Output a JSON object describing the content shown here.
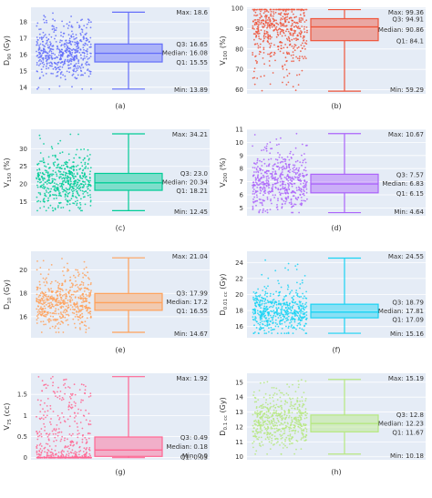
{
  "chart_data": [
    {
      "type": "box",
      "label": "(a)",
      "ylabel": "D",
      "ylabel_sub": "90",
      "ylabel_unit": "(Gy)",
      "color": "#636EFA",
      "ylim": [
        13.6,
        18.9
      ],
      "yticks": [
        14,
        15,
        16,
        17,
        18
      ],
      "stats": {
        "max": 18.6,
        "q3": 16.65,
        "median": 16.08,
        "q1": 15.55,
        "min": 13.89
      },
      "stat_text": {
        "max": "Max: 18.6",
        "q3": "Q3: 16.65",
        "median": "Median: 16.08",
        "q1": "Q1: 15.55",
        "min": "Min: 13.89"
      }
    },
    {
      "type": "box",
      "label": "(b)",
      "ylabel": "V",
      "ylabel_sub": "100",
      "ylabel_unit": "(%)",
      "color": "#EF553B",
      "ylim": [
        58,
        100.5
      ],
      "yticks": [
        60,
        70,
        80,
        90,
        100
      ],
      "stats": {
        "max": 99.36,
        "q3": 94.91,
        "median": 90.86,
        "q1": 84.1,
        "min": 59.29
      },
      "stat_text": {
        "max": "Max: 99.36",
        "q3": "Q3: 94.91",
        "median": "Median: 90.86",
        "q1": "Q1: 84.1",
        "min": "Min: 59.29"
      }
    },
    {
      "type": "box",
      "label": "(c)",
      "ylabel": "V",
      "ylabel_sub": "150",
      "ylabel_unit": "(%)",
      "color": "#00CC96",
      "ylim": [
        11,
        35.5
      ],
      "yticks": [
        15,
        20,
        25,
        30
      ],
      "stats": {
        "max": 34.21,
        "q3": 23.0,
        "median": 20.34,
        "q1": 18.21,
        "min": 12.45
      },
      "stat_text": {
        "max": "Max: 34.21",
        "q3": "Q3: 23.0",
        "median": "Median: 20.34",
        "q1": "Q1: 18.21",
        "min": "Min: 12.45"
      }
    },
    {
      "type": "box",
      "label": "(d)",
      "ylabel": "V",
      "ylabel_sub": "200",
      "ylabel_unit": "(%)",
      "color": "#AB63FA",
      "ylim": [
        4.4,
        11
      ],
      "yticks": [
        5,
        6,
        7,
        8,
        9,
        10,
        11
      ],
      "stats": {
        "max": 10.67,
        "q3": 7.57,
        "median": 6.83,
        "q1": 6.15,
        "min": 4.64
      },
      "stat_text": {
        "max": "Max: 10.67",
        "q3": "Q3: 7.57",
        "median": "Median: 6.83",
        "q1": "Q1: 6.15",
        "min": "Min: 4.64"
      }
    },
    {
      "type": "box",
      "label": "(e)",
      "ylabel": "D",
      "ylabel_sub": "10",
      "ylabel_unit": "(Gy)",
      "color": "#FFA15A",
      "ylim": [
        14.2,
        21.6
      ],
      "yticks": [
        16,
        18,
        20
      ],
      "stats": {
        "max": 21.04,
        "q3": 17.99,
        "median": 17.2,
        "q1": 16.55,
        "min": 14.67
      },
      "stat_text": {
        "max": "Max: 21.04",
        "q3": "Q3: 17.99",
        "median": "Median: 17.2",
        "q1": "Q1: 16.55",
        "min": "Min: 14.67"
      }
    },
    {
      "type": "box",
      "label": "(f)",
      "ylabel": "D",
      "ylabel_sub": "0.01 cc",
      "ylabel_unit": "(Gy)",
      "color": "#19D3F3",
      "ylim": [
        14.6,
        25.4
      ],
      "yticks": [
        16,
        18,
        20,
        22,
        24
      ],
      "stats": {
        "max": 24.55,
        "q3": 18.79,
        "median": 17.81,
        "q1": 17.09,
        "min": 15.16
      },
      "stat_text": {
        "max": "Max: 24.55",
        "q3": "Q3: 18.79",
        "median": "Median: 17.81",
        "q1": "Q1: 17.09",
        "min": "Min: 15.16"
      }
    },
    {
      "type": "box",
      "label": "(g)",
      "ylabel": "V",
      "ylabel_sub": "75",
      "ylabel_unit": "(cc)",
      "color": "#FF6692",
      "ylim": [
        -0.05,
        2.0
      ],
      "yticks": [
        0,
        0.5,
        1,
        1.5
      ],
      "stats": {
        "max": 1.92,
        "q3": 0.49,
        "median": 0.18,
        "q1": 0.03,
        "min": 0.0
      },
      "stat_text": {
        "max": "Max: 1.92",
        "q3": "Q3: 0.49",
        "median": "Median: 0.18",
        "q1": "Q1: 0.03",
        "min": "Min: 0.0"
      }
    },
    {
      "type": "box",
      "label": "(h)",
      "ylabel": "D",
      "ylabel_sub": "0.1 cc",
      "ylabel_unit": "(Gy)",
      "color": "#B6E880",
      "ylim": [
        9.8,
        15.6
      ],
      "yticks": [
        10,
        11,
        12,
        13,
        14,
        15
      ],
      "stats": {
        "max": 15.19,
        "q3": 12.8,
        "median": 12.23,
        "q1": 11.67,
        "min": 10.18
      },
      "stat_text": {
        "max": "Max: 15.19",
        "q3": "Q3: 12.8",
        "median": "Median: 12.23",
        "q1": "Q1: 11.67",
        "min": "Min: 10.18"
      }
    }
  ]
}
